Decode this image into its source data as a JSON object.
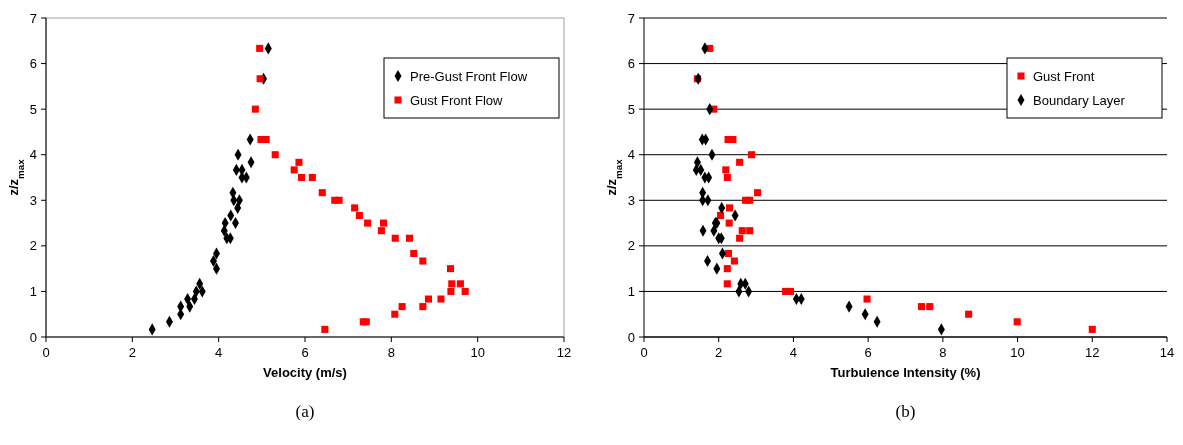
{
  "chart_data": [
    {
      "type": "scatter",
      "xlabel": "Velocity (m/s)",
      "ylabel": "z/z$_{max}$",
      "xlim": [
        0,
        12
      ],
      "ylim": [
        0,
        7
      ],
      "xticks": [
        0,
        2,
        4,
        6,
        8,
        10,
        12
      ],
      "yticks": [
        0,
        1,
        2,
        3,
        4,
        5,
        6,
        7
      ],
      "legend": "top right",
      "annotations": [
        "(a)"
      ],
      "series": [
        {
          "name": "Pre-Gust Front Flow",
          "color": "#000000",
          "marker": "diamond",
          "x": [
            2.46,
            2.86,
            3.12,
            3.12,
            3.33,
            3.28,
            3.44,
            3.56,
            3.62,
            3.48,
            3.95,
            3.88,
            3.95,
            4.15,
            4.13,
            4.19,
            4.27,
            4.28,
            4.39,
            4.33,
            4.35,
            4.48,
            4.44,
            4.54,
            4.64,
            5.15,
            5.04,
            4.73,
            4.45,
            4.75,
            4.41,
            4.54
          ],
          "values": [
            0.167,
            0.333,
            0.5,
            0.667,
            0.667,
            0.833,
            0.833,
            1.167,
            1,
            1,
            1.833,
            1.667,
            1.5,
            2.5,
            2.333,
            2.167,
            2.167,
            2.667,
            2.5,
            3.167,
            3,
            3,
            2.833,
            3.5,
            3.5,
            6.333,
            5.667,
            4.333,
            4,
            3.833,
            3.667,
            3.667
          ]
        },
        {
          "name": "Gust Front Flow",
          "color": "#ff0000",
          "marker": "square",
          "x": [
            4.95,
            4.96,
            4.85,
            4.98,
            5.1,
            5.31,
            5.86,
            5.75,
            5.92,
            6.17,
            6.4,
            6.69,
            6.79,
            7.15,
            7.26,
            7.45,
            7.82,
            7.77,
            8.09,
            8.42,
            8.52,
            8.73,
            9.37,
            9.4,
            9.6,
            9.71,
            9.38,
            9.15,
            8.86,
            8.73,
            8.25,
            8.08,
            7.35,
            7.42,
            6.46
          ],
          "values": [
            6.333,
            5.667,
            5,
            4.333,
            4.333,
            4,
            3.833,
            3.667,
            3.5,
            3.5,
            3.167,
            3,
            3,
            2.833,
            2.667,
            2.5,
            2.5,
            2.333,
            2.167,
            2.167,
            1.833,
            1.667,
            1.5,
            1.167,
            1.167,
            1,
            1,
            0.833,
            0.833,
            0.667,
            0.667,
            0.5,
            0.333,
            0.333,
            0.167
          ]
        }
      ]
    },
    {
      "type": "scatter",
      "xlabel": "Turbulence Intensity (%)",
      "ylabel": "z/z$_{max}$",
      "xlim": [
        0,
        14
      ],
      "ylim": [
        0,
        7
      ],
      "xticks": [
        0,
        2,
        4,
        6,
        8,
        10,
        12,
        14
      ],
      "yticks": [
        0,
        1,
        2,
        3,
        4,
        5,
        6,
        7
      ],
      "grid": "y",
      "legend": "top right",
      "annotations": [
        "(b)"
      ],
      "series": [
        {
          "name": "Gust Front",
          "color": "#ff0000",
          "marker": "square",
          "x": [
            1.76,
            1.43,
            1.87,
            2.25,
            2.38,
            2.88,
            2.56,
            2.19,
            2.23,
            3.04,
            2.72,
            2.83,
            2.29,
            2.05,
            2.28,
            2.63,
            2.83,
            2.56,
            2.26,
            2.42,
            2.23,
            2.23,
            3.79,
            3.92,
            5.97,
            7.43,
            7.65,
            8.69,
            9.99,
            12.0
          ],
          "values": [
            6.333,
            5.667,
            5,
            4.333,
            4.333,
            4,
            3.833,
            3.667,
            3.5,
            3.167,
            3,
            3,
            2.833,
            2.667,
            2.5,
            2.333,
            2.333,
            2.167,
            1.833,
            1.667,
            1.5,
            1.167,
            1,
            1,
            0.833,
            0.667,
            0.667,
            0.5,
            0.333,
            0.167
          ]
        },
        {
          "name": "Boundary Layer",
          "color": "#000000",
          "marker": "diamond",
          "x": [
            1.63,
            1.45,
            1.76,
            1.56,
            1.65,
            1.82,
            1.43,
            1.4,
            1.52,
            1.63,
            1.73,
            1.57,
            1.57,
            1.71,
            2.08,
            2.44,
            1.91,
            1.95,
            1.58,
            1.87,
            2.0,
            2.07,
            2.1,
            1.7,
            1.95,
            2.59,
            2.71,
            2.54,
            2.8,
            4.08,
            4.21,
            5.49,
            5.92,
            6.24,
            7.96
          ],
          "values": [
            6.333,
            5.667,
            5,
            4.333,
            4.333,
            4,
            3.833,
            3.667,
            3.667,
            3.5,
            3.5,
            3.167,
            3,
            3,
            2.833,
            2.667,
            2.5,
            2.5,
            2.333,
            2.333,
            2.167,
            2.167,
            1.833,
            1.667,
            1.5,
            1.167,
            1.167,
            1,
            1,
            0.833,
            0.833,
            0.667,
            0.5,
            0.333,
            0.167
          ]
        }
      ]
    }
  ]
}
